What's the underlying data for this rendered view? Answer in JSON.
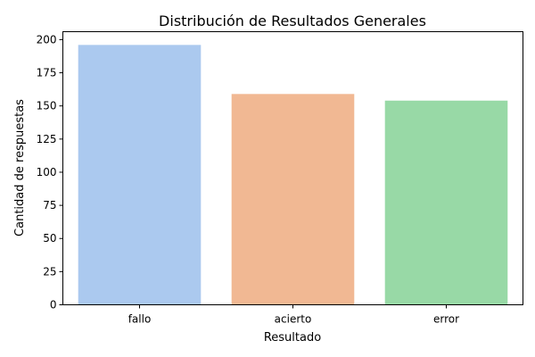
{
  "chart_data": {
    "type": "bar",
    "title": "Distribución de Resultados Generales",
    "xlabel": "Resultado",
    "ylabel": "Cantidad de respuestas",
    "categories": [
      "fallo",
      "acierto",
      "error"
    ],
    "values": [
      196,
      159,
      154
    ],
    "colors": [
      "#abc9ef",
      "#f1b893",
      "#98d9a6"
    ],
    "ylim": [
      0,
      206
    ],
    "yticks": [
      0,
      25,
      50,
      75,
      100,
      125,
      150,
      175,
      200
    ],
    "grid": false,
    "legend": "none"
  }
}
